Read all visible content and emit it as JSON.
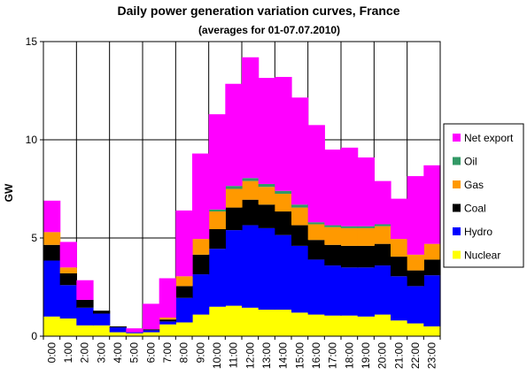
{
  "chart_data": {
    "type": "area",
    "title": "Daily power generation variation curves, France",
    "subtitle": "(averages for 01-07.07.2010)",
    "ylabel": "GW",
    "xlabel": "",
    "ylim": [
      0,
      15
    ],
    "yticks": [
      "0",
      "5",
      "10",
      "15"
    ],
    "grid": true,
    "legend_position": "right",
    "categories": [
      "0:00",
      "1:00",
      "2:00",
      "3:00",
      "4:00",
      "5:00",
      "6:00",
      "7:00",
      "8:00",
      "9:00",
      "10:00",
      "11:00",
      "12:00",
      "13:00",
      "14:00",
      "15:00",
      "16:00",
      "17:00",
      "18:00",
      "19:00",
      "20:00",
      "21:00",
      "22:00",
      "23:00"
    ],
    "series": [
      {
        "name": "Nuclear",
        "color": "#ffff00",
        "values": [
          1.0,
          0.9,
          0.55,
          0.55,
          0.2,
          0.15,
          0.2,
          0.6,
          0.7,
          1.1,
          1.5,
          1.55,
          1.45,
          1.35,
          1.35,
          1.2,
          1.1,
          1.05,
          1.05,
          1.0,
          1.1,
          0.8,
          0.65,
          0.5
        ]
      },
      {
        "name": "Hydro",
        "color": "#0000ff",
        "values": [
          2.85,
          1.7,
          0.9,
          0.6,
          0.25,
          0.05,
          0.1,
          0.15,
          1.25,
          2.05,
          2.95,
          3.85,
          4.2,
          4.15,
          3.8,
          3.4,
          2.8,
          2.55,
          2.45,
          2.5,
          2.5,
          2.25,
          1.9,
          2.6
        ]
      },
      {
        "name": "Coal",
        "color": "#000000",
        "values": [
          0.8,
          0.6,
          0.4,
          0.15,
          0.05,
          0.0,
          0.05,
          0.1,
          0.6,
          1.0,
          1.0,
          1.15,
          1.3,
          1.2,
          1.2,
          1.05,
          1.0,
          1.05,
          1.1,
          1.1,
          1.1,
          1.0,
          0.8,
          0.8
        ]
      },
      {
        "name": "Gas",
        "color": "#ff9900",
        "values": [
          0.65,
          0.3,
          0.0,
          0.0,
          0.0,
          0.0,
          0.0,
          0.1,
          0.5,
          0.8,
          0.9,
          0.95,
          0.95,
          0.9,
          0.9,
          0.9,
          0.8,
          0.9,
          0.9,
          0.9,
          0.9,
          0.9,
          0.8,
          0.8
        ]
      },
      {
        "name": "Oil",
        "color": "#339966",
        "values": [
          0.0,
          0.0,
          0.0,
          0.0,
          0.0,
          0.0,
          0.0,
          0.0,
          0.0,
          0.0,
          0.1,
          0.15,
          0.15,
          0.15,
          0.15,
          0.15,
          0.1,
          0.1,
          0.1,
          0.1,
          0.1,
          0.0,
          0.0,
          0.0
        ]
      },
      {
        "name": "Net export",
        "color": "#ff00ff",
        "values": [
          1.6,
          1.3,
          1.0,
          0.0,
          0.0,
          0.2,
          1.3,
          2.0,
          3.35,
          4.35,
          4.85,
          5.2,
          6.15,
          5.4,
          5.8,
          5.45,
          4.95,
          3.85,
          4.0,
          3.5,
          2.2,
          2.05,
          4.0,
          4.0
        ]
      }
    ],
    "legend_order": [
      "Net export",
      "Oil",
      "Gas",
      "Coal",
      "Hydro",
      "Nuclear"
    ]
  }
}
